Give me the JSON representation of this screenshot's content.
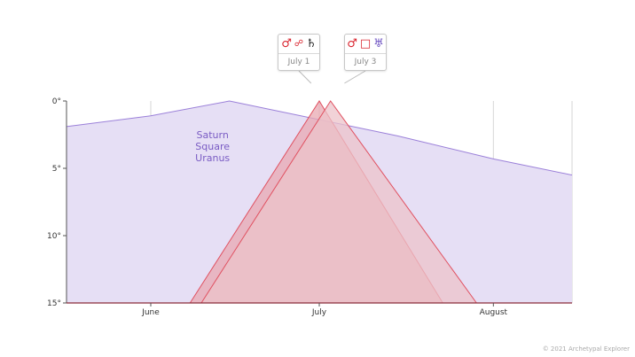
{
  "chart_data": {
    "type": "area",
    "y_axis": {
      "ticks": [
        "0°",
        "5°",
        "10°",
        "15°"
      ],
      "values": [
        0,
        5,
        10,
        15
      ],
      "range": [
        0,
        15
      ],
      "inverted": true
    },
    "x_axis": {
      "ticks": [
        "June",
        "July",
        "August"
      ]
    },
    "grid": true,
    "series": [
      {
        "name": "Saturn Square Uranus",
        "label_lines": [
          "Saturn",
          "Square",
          "Uranus"
        ],
        "color": "#9b80d9",
        "fill": "#e6dff5",
        "points": [
          [
            "May 17",
            1.9
          ],
          [
            "June 1",
            1.1
          ],
          [
            "June 15",
            0.0
          ],
          [
            "July 15",
            2.6
          ],
          [
            "August 1",
            4.3
          ],
          [
            "August 15",
            5.5
          ]
        ]
      },
      {
        "name": "Mars Opposition Saturn",
        "color": "#e05060",
        "fill": "#e8a8b2",
        "points": [
          [
            "June 8",
            15
          ],
          [
            "July 1",
            0
          ],
          [
            "July 23",
            15
          ]
        ]
      },
      {
        "name": "Mars Square Uranus",
        "color": "#e05060",
        "fill": "#ecc3ca",
        "points": [
          [
            "June 10",
            15
          ],
          [
            "July 3",
            0
          ],
          [
            "July 29",
            15
          ]
        ]
      }
    ]
  },
  "callouts": [
    {
      "date": "July 1",
      "glyphs": [
        "♂",
        "☍",
        "♄"
      ],
      "colors": [
        "#d9232d",
        "#d9232d",
        "#222222"
      ]
    },
    {
      "date": "July 3",
      "glyphs": [
        "♂",
        "□",
        "♅"
      ],
      "colors": [
        "#d9232d",
        "#d9232d",
        "#6b4fc0"
      ]
    }
  ],
  "copyright": "© 2021 Archetypal Explorer"
}
